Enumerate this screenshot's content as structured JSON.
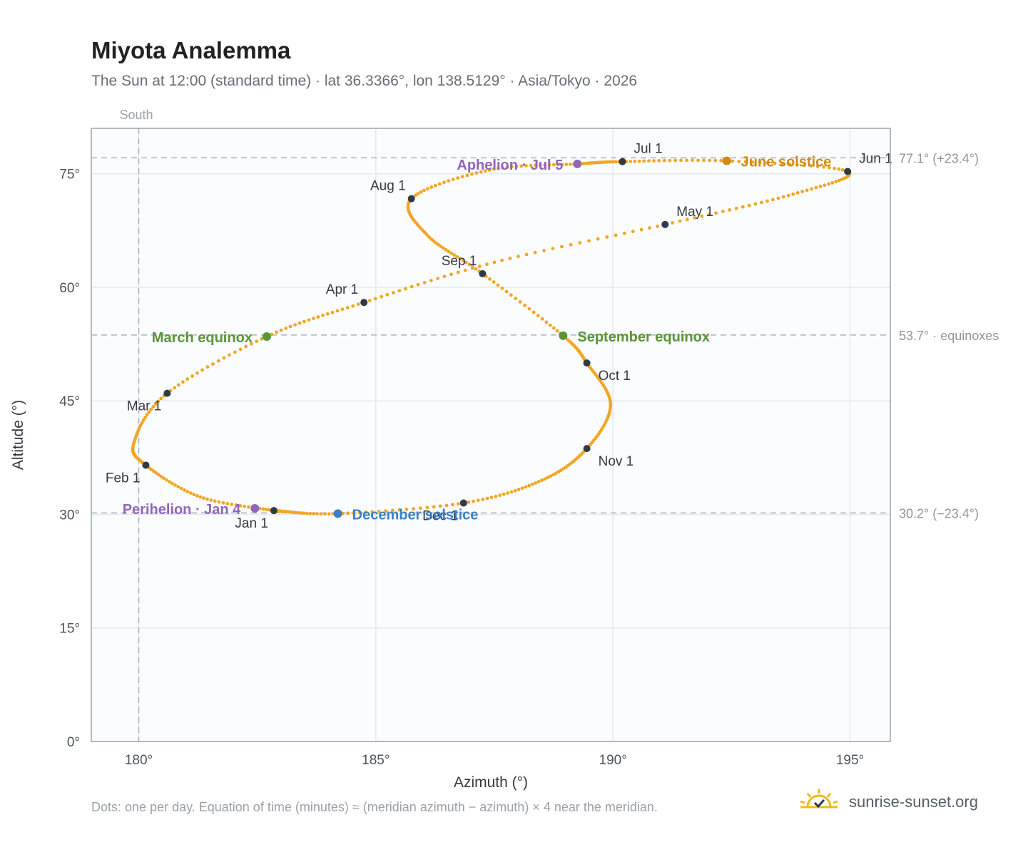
{
  "header": {
    "title": "Miyota Analemma",
    "subtitle": "The Sun at 12:00 (standard time) · lat 36.3366°, lon 138.5129° · Asia/Tokyo · 2026"
  },
  "footer": {
    "note": "Dots: one per day. Equation of time (minutes) ≈ (meridian azimuth − azimuth) × 4 near the meridian.",
    "brand": "sunrise-sunset.org",
    "brand_icon": "sun-logo-icon"
  },
  "colors": {
    "path": "#f2a623",
    "month_dot": "#2f3a45",
    "equinox": "#5a9438",
    "june_solstice": "#d08a10",
    "december_solstice": "#3d7fc4",
    "aphelion_perihelion": "#9166b8",
    "plot_bg": "#fbfcfe",
    "grid": "#e4e8ee",
    "reference_line": "#aab3bf"
  },
  "chart_data": {
    "type": "scatter",
    "title": "Miyota Analemma",
    "xlabel": "Azimuth (°)",
    "ylabel": "Altitude (°)",
    "xlim": [
      179,
      195.85
    ],
    "ylim": [
      0,
      81
    ],
    "x_ticks": [
      180,
      185,
      190,
      195
    ],
    "x_tick_labels": [
      "180°",
      "185°",
      "190°",
      "195°"
    ],
    "y_ticks": [
      0,
      15,
      30,
      45,
      60,
      75
    ],
    "y_tick_labels": [
      "0°",
      "15°",
      "30°",
      "45°",
      "60°",
      "75°"
    ],
    "grid": true,
    "meridian": {
      "azimuth": 180,
      "label": "South"
    },
    "reference_lines": [
      {
        "altitude": 77.1,
        "label": "77.1° (+23.4°)"
      },
      {
        "altitude": 53.7,
        "label": "53.7° · equinoxes"
      },
      {
        "altitude": 30.2,
        "label": "30.2° (−23.4°)"
      }
    ],
    "series": [
      {
        "points": [
          {
            "date": "2026-01-01",
            "az": 182.85,
            "alt": 30.5
          },
          {
            "date": "2026-01-15",
            "az": 181.3,
            "alt": 32.3
          },
          {
            "date": "2026-02-01",
            "az": 180.15,
            "alt": 36.5
          },
          {
            "date": "2026-02-12",
            "az": 179.9,
            "alt": 39.5
          },
          {
            "date": "2026-03-01",
            "az": 180.6,
            "alt": 46.0
          },
          {
            "date": "2026-03-20",
            "az": 182.7,
            "alt": 53.5
          },
          {
            "date": "2026-04-01",
            "az": 184.75,
            "alt": 58.0
          },
          {
            "date": "2026-04-15",
            "az": 187.5,
            "alt": 63.3
          },
          {
            "date": "2026-05-01",
            "az": 191.1,
            "alt": 68.3
          },
          {
            "date": "2026-05-15",
            "az": 193.8,
            "alt": 72.3
          },
          {
            "date": "2026-06-01",
            "az": 194.95,
            "alt": 75.3
          },
          {
            "date": "2026-06-21",
            "az": 192.4,
            "alt": 76.7
          },
          {
            "date": "2026-07-01",
            "az": 190.2,
            "alt": 76.6
          },
          {
            "date": "2026-07-05",
            "az": 189.25,
            "alt": 76.3
          },
          {
            "date": "2026-07-15",
            "az": 187.4,
            "alt": 75.5
          },
          {
            "date": "2026-08-01",
            "az": 185.75,
            "alt": 71.7
          },
          {
            "date": "2026-08-15",
            "az": 186.1,
            "alt": 66.8
          },
          {
            "date": "2026-09-01",
            "az": 187.25,
            "alt": 61.8
          },
          {
            "date": "2026-09-23",
            "az": 188.95,
            "alt": 53.6
          },
          {
            "date": "2026-10-01",
            "az": 189.45,
            "alt": 50.0
          },
          {
            "date": "2026-10-15",
            "az": 189.95,
            "alt": 44.5
          },
          {
            "date": "2026-11-01",
            "az": 189.45,
            "alt": 38.7
          },
          {
            "date": "2026-11-15",
            "az": 188.5,
            "alt": 34.5
          },
          {
            "date": "2026-12-01",
            "az": 186.85,
            "alt": 31.5
          },
          {
            "date": "2026-12-21",
            "az": 184.2,
            "alt": 30.1
          },
          {
            "date": "2026-12-31",
            "az": 182.95,
            "alt": 30.45
          }
        ]
      }
    ],
    "month_markers": [
      {
        "label": "Jan 1",
        "az": 182.85,
        "alt": 30.5,
        "pos": "below-left"
      },
      {
        "label": "Feb 1",
        "az": 180.15,
        "alt": 36.5,
        "pos": "below-left"
      },
      {
        "label": "Mar 1",
        "az": 180.6,
        "alt": 46.0,
        "pos": "below-left"
      },
      {
        "label": "Apr 1",
        "az": 184.75,
        "alt": 58.0,
        "pos": "above-left"
      },
      {
        "label": "May 1",
        "az": 191.1,
        "alt": 68.3,
        "pos": "above-right"
      },
      {
        "label": "Jun 1",
        "az": 194.95,
        "alt": 75.3,
        "pos": "above-right"
      },
      {
        "label": "Jul 1",
        "az": 190.2,
        "alt": 76.6,
        "pos": "above-right"
      },
      {
        "label": "Aug 1",
        "az": 185.75,
        "alt": 71.7,
        "pos": "above-left"
      },
      {
        "label": "Sep 1",
        "az": 187.25,
        "alt": 61.8,
        "pos": "above-left"
      },
      {
        "label": "Oct 1",
        "az": 189.45,
        "alt": 50.0,
        "pos": "below-right"
      },
      {
        "label": "Nov 1",
        "az": 189.45,
        "alt": 38.7,
        "pos": "below-right"
      },
      {
        "label": "Dec 1",
        "az": 186.85,
        "alt": 31.5,
        "pos": "below-left"
      }
    ],
    "events": [
      {
        "label": "March equinox",
        "az": 182.7,
        "alt": 53.5,
        "color_key": "equinox",
        "pos": "left"
      },
      {
        "label": "September equinox",
        "az": 188.95,
        "alt": 53.6,
        "color_key": "equinox",
        "pos": "right"
      },
      {
        "label": "June solstice",
        "az": 192.4,
        "alt": 76.7,
        "color_key": "june_solstice",
        "pos": "right"
      },
      {
        "label": "December solstice",
        "az": 184.2,
        "alt": 30.1,
        "color_key": "december_solstice",
        "pos": "right"
      },
      {
        "label": "Aphelion · Jul 5",
        "az": 189.25,
        "alt": 76.3,
        "color_key": "aphelion_perihelion",
        "pos": "left"
      },
      {
        "label": "Perihelion · Jan 4",
        "az": 182.45,
        "alt": 30.8,
        "color_key": "aphelion_perihelion",
        "pos": "left"
      }
    ]
  }
}
